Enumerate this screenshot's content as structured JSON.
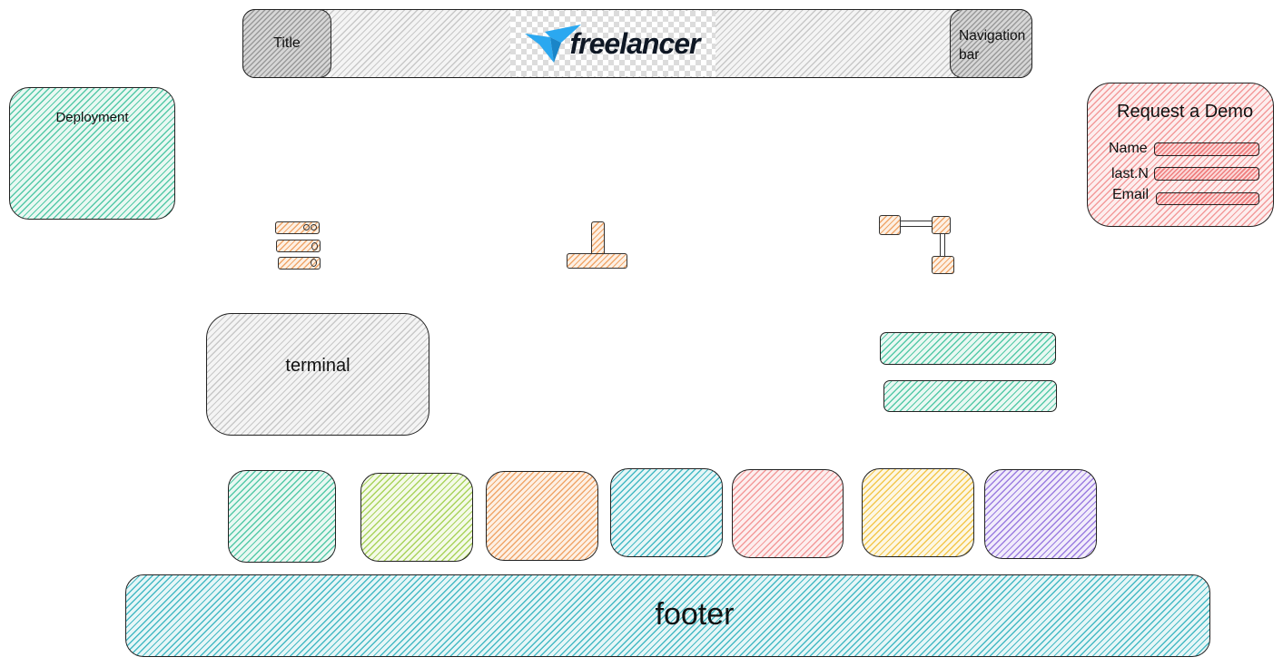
{
  "header": {
    "title": "Title",
    "logo_text": "freelancer",
    "nav": "Navigation bar"
  },
  "left_panel": {
    "label": "Deployment"
  },
  "demo_form": {
    "title": "Request a Demo",
    "fields": [
      {
        "label": "Name",
        "value": ""
      },
      {
        "label": "last.N",
        "value": ""
      },
      {
        "label": "Email",
        "value": ""
      }
    ]
  },
  "icons": [
    "server-stack-icon",
    "stand-icon",
    "flow-nodes-icon"
  ],
  "terminal": {
    "label": "terminal"
  },
  "footer": {
    "label": "footer"
  },
  "palette": {
    "teal": "#55c9a8",
    "green": "#a9d35c",
    "orange": "#f0a66a",
    "cyan": "#45b9c4",
    "pink": "#f39a9a",
    "yellow": "#f3c74d",
    "purple": "#9b7de0",
    "gray": "#c8c8c8",
    "logo_blue": "#2ba8f0",
    "logo_dark": "#0e1724"
  }
}
